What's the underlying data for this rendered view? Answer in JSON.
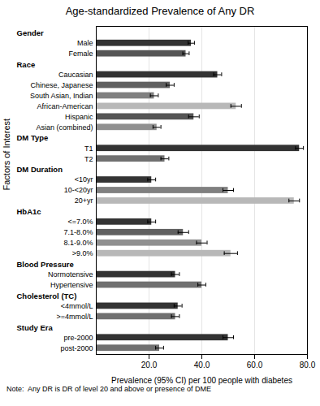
{
  "chart_data": {
    "type": "bar",
    "orientation": "horizontal",
    "title": "Age-standardized Prevalence of Any DR",
    "xlabel": "Prevalence (95% CI) per 100 people with diabetes",
    "ylabel": "Factors of Interest",
    "note": "Note:  Any DR is DR of level 20 and above or presence of DME",
    "categories": [
      "Male",
      "Female",
      "Caucasian",
      "Chinese, Japanese",
      "South Asian, Indian",
      "African-American",
      "Hispanic",
      "Asian (combined)",
      "T1",
      "T2",
      "<10yr",
      "10-<20yr",
      "20+yr",
      "<=7.0%",
      "7.1-8.0%",
      "8.1-9.0%",
      ">9.0%",
      "Normotensive",
      "Hypertensive",
      "<4mmol/L",
      ">=4mmol/L",
      "pre-2000",
      "post-2000"
    ],
    "values": [
      36,
      34,
      46,
      28,
      22,
      53,
      37,
      23,
      77,
      26,
      21,
      50,
      75,
      21,
      33,
      40,
      51,
      30,
      40,
      31,
      30,
      50,
      24
    ],
    "errors": [
      1.2,
      1.2,
      1.5,
      1.5,
      1.5,
      2.0,
      2.0,
      1.5,
      1.5,
      1.5,
      1.5,
      2.0,
      2.0,
      1.5,
      2.0,
      2.0,
      2.5,
      1.5,
      1.5,
      1.5,
      1.5,
      2.0,
      1.5
    ],
    "colors": [
      "#333333",
      "#555555",
      "#333333",
      "#606060",
      "#808080",
      "#b8b8b8",
      "#555555",
      "#909090",
      "#333333",
      "#707070",
      "#333333",
      "#808080",
      "#b8b8b8",
      "#333333",
      "#606060",
      "#909090",
      "#b8b8b8",
      "#333333",
      "#707070",
      "#333333",
      "#707070",
      "#333333",
      "#707070"
    ],
    "sections": [
      {
        "label": "Gender",
        "index": 0
      },
      {
        "label": "Race",
        "index": 2
      },
      {
        "label": "DM Type",
        "index": 8
      },
      {
        "label": "DM Duration",
        "index": 10
      },
      {
        "label": "HbA1c",
        "index": 13
      },
      {
        "label": "Blood Pressure",
        "index": 17
      },
      {
        "label": "Cholesterol (TC)",
        "index": 19
      },
      {
        "label": "Study Era",
        "index": 21
      }
    ],
    "xlim": [
      0,
      80
    ],
    "xticks": [
      {
        "value": 20,
        "label": "20.0"
      },
      {
        "value": 40,
        "label": "40.0"
      },
      {
        "value": 60,
        "label": "60.0"
      },
      {
        "value": 80,
        "label": "80.0"
      }
    ],
    "grid": true
  }
}
